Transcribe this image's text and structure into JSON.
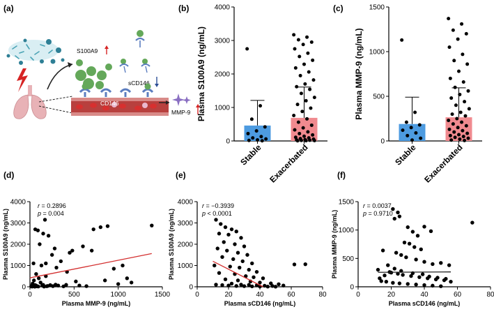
{
  "panels": [
    "(a)",
    "(b)",
    "(c)",
    "(d)",
    "(e)",
    "(f)"
  ],
  "diagram": {
    "labels": {
      "s100a9": "S100A9",
      "scd146": "sCD146",
      "cd146": "CD146",
      "mmp9": "MMP-9"
    },
    "colors": {
      "s100a9_circle": "#64a85a",
      "lung": "#e8b2b6",
      "vessel": "#b8403e",
      "receptor": "#5b7dbf",
      "mmp9_star": "#8a6fc2",
      "up_arrow": "#d62424",
      "down_arrow": "#2d4f96"
    }
  },
  "chart_data": [
    {
      "id": "b",
      "type": "bar",
      "categories": [
        "Stable",
        "Exacerbated"
      ],
      "values": [
        460,
        690
      ],
      "error_upper": [
        1210,
        1610
      ],
      "ylabel": "Plasma S100A9 (ng/mL)",
      "ylim": [
        0,
        4000
      ],
      "yticks": [
        "0",
        "1000",
        "2000",
        "3000",
        "4000"
      ],
      "colors": [
        "#4d9be0",
        "#f08a8f"
      ],
      "points": [
        {
          "group": 0,
          "values": [
            2750,
            1050,
            650,
            420,
            300,
            220,
            130,
            90,
            60,
            30,
            15,
            5
          ]
        },
        {
          "group": 1,
          "values": [
            3170,
            3100,
            3020,
            2950,
            2880,
            2750,
            2620,
            2520,
            2410,
            2290,
            2180,
            2060,
            1950,
            1820,
            1700,
            1620,
            1540,
            1420,
            1300,
            1200,
            1090,
            980,
            880,
            760,
            660,
            560,
            470,
            390,
            330,
            270,
            220,
            180,
            140,
            110,
            90,
            70,
            55,
            40,
            30,
            20,
            15,
            10,
            8,
            5
          ]
        }
      ]
    },
    {
      "id": "c",
      "type": "bar",
      "categories": [
        "Stable",
        "Exacerbated"
      ],
      "values": [
        190,
        265
      ],
      "error_upper": [
        490,
        595
      ],
      "ylabel": "Plasma MMP-9 (ng/mL)",
      "ylim": [
        0,
        1500
      ],
      "yticks": [
        "0",
        "500",
        "1000",
        "1500"
      ],
      "colors": [
        "#4d9be0",
        "#f08a8f"
      ],
      "points": [
        {
          "group": 0,
          "values": [
            1130,
            320,
            210,
            180,
            150,
            120,
            90,
            60,
            30,
            10
          ]
        },
        {
          "group": 1,
          "values": [
            1370,
            1310,
            1240,
            1200,
            1140,
            1050,
            970,
            900,
            860,
            780,
            700,
            660,
            600,
            560,
            520,
            480,
            440,
            400,
            360,
            320,
            300,
            280,
            250,
            230,
            210,
            190,
            170,
            150,
            130,
            115,
            100,
            85,
            70,
            60,
            50,
            40,
            30,
            20,
            10,
            5
          ]
        }
      ]
    },
    {
      "id": "d",
      "type": "scatter",
      "xlabel": "Plasma MMP-9 (ng/mL)",
      "ylabel": "Plasma S100A9 (ng/mL)",
      "xlim": [
        0,
        1500
      ],
      "ylim": [
        0,
        4000
      ],
      "xticks": [
        "0",
        "500",
        "1000",
        "1500"
      ],
      "yticks": [
        "0",
        "1000",
        "2000",
        "3000",
        "4000"
      ],
      "r_label": "r",
      "r_value": " = 0.2896",
      "p_label": "p",
      "p_value": " = 0.004",
      "fit": {
        "x": [
          0,
          1380
        ],
        "y": [
          420,
          1560
        ]
      },
      "fit_color": "#d32f2f",
      "points": [
        [
          20,
          50
        ],
        [
          30,
          150
        ],
        [
          45,
          300
        ],
        [
          60,
          80
        ],
        [
          80,
          20
        ],
        [
          100,
          400
        ],
        [
          120,
          200
        ],
        [
          150,
          90
        ],
        [
          180,
          500
        ],
        [
          200,
          40
        ],
        [
          60,
          2700
        ],
        [
          90,
          2650
        ],
        [
          150,
          2500
        ],
        [
          170,
          3150
        ],
        [
          210,
          2400
        ],
        [
          110,
          2000
        ],
        [
          180,
          1100
        ],
        [
          250,
          1500
        ],
        [
          280,
          1800
        ],
        [
          300,
          900
        ],
        [
          350,
          1200
        ],
        [
          420,
          700
        ],
        [
          450,
          1600
        ],
        [
          480,
          1700
        ],
        [
          520,
          250
        ],
        [
          600,
          1900
        ],
        [
          700,
          1700
        ],
        [
          720,
          2700
        ],
        [
          800,
          2800
        ],
        [
          880,
          2850
        ],
        [
          850,
          300
        ],
        [
          950,
          850
        ],
        [
          1000,
          130
        ],
        [
          1050,
          1000
        ],
        [
          1100,
          400
        ],
        [
          1150,
          200
        ],
        [
          1380,
          2880
        ],
        [
          40,
          1100
        ],
        [
          70,
          600
        ],
        [
          130,
          1000
        ],
        [
          15,
          20
        ],
        [
          25,
          10
        ],
        [
          35,
          30
        ],
        [
          55,
          5
        ],
        [
          75,
          45
        ],
        [
          95,
          15
        ],
        [
          140,
          60
        ],
        [
          160,
          10
        ],
        [
          190,
          25
        ],
        [
          230,
          80
        ],
        [
          260,
          30
        ],
        [
          290,
          100
        ],
        [
          320,
          60
        ],
        [
          380,
          20
        ],
        [
          410,
          90
        ],
        [
          560,
          60
        ],
        [
          640,
          30
        ]
      ]
    },
    {
      "id": "e",
      "type": "scatter",
      "xlabel": "Plasma sCD146 (ng/mL)",
      "ylabel": "Plasma S100A9 (ng/mL)",
      "xlim": [
        0,
        80
      ],
      "ylim": [
        0,
        4000
      ],
      "xticks": [
        "0",
        "20",
        "40",
        "60",
        "80"
      ],
      "yticks": [
        "0",
        "1000",
        "2000",
        "3000",
        "4000"
      ],
      "r_label": "r",
      "r_value": " = −0.3939",
      "p_label": "p",
      "p_value": " < 0.0001",
      "fit": {
        "x": [
          10,
          42
        ],
        "y": [
          1200,
          0
        ]
      },
      "fit_color": "#d32f2f",
      "points": [
        [
          12,
          3150
        ],
        [
          15,
          2950
        ],
        [
          18,
          2800
        ],
        [
          22,
          2700
        ],
        [
          25,
          2600
        ],
        [
          14,
          2500
        ],
        [
          20,
          2450
        ],
        [
          28,
          2300
        ],
        [
          17,
          2100
        ],
        [
          24,
          2000
        ],
        [
          30,
          1900
        ],
        [
          13,
          1800
        ],
        [
          19,
          1700
        ],
        [
          26,
          1600
        ],
        [
          32,
          1500
        ],
        [
          16,
          1400
        ],
        [
          23,
          1300
        ],
        [
          29,
          1200
        ],
        [
          35,
          1100
        ],
        [
          11,
          1000
        ],
        [
          21,
          950
        ],
        [
          27,
          900
        ],
        [
          33,
          800
        ],
        [
          38,
          700
        ],
        [
          14,
          650
        ],
        [
          24,
          600
        ],
        [
          31,
          500
        ],
        [
          36,
          450
        ],
        [
          42,
          400
        ],
        [
          18,
          350
        ],
        [
          26,
          300
        ],
        [
          34,
          250
        ],
        [
          40,
          200
        ],
        [
          47,
          160
        ],
        [
          52,
          120
        ],
        [
          12,
          100
        ],
        [
          16,
          80
        ],
        [
          20,
          60
        ],
        [
          25,
          40
        ],
        [
          30,
          30
        ],
        [
          35,
          20
        ],
        [
          40,
          15
        ],
        [
          45,
          10
        ],
        [
          50,
          5
        ],
        [
          55,
          60
        ],
        [
          69,
          1060
        ],
        [
          62,
          1050
        ],
        [
          22,
          150
        ],
        [
          28,
          100
        ],
        [
          33,
          90
        ],
        [
          38,
          70
        ],
        [
          43,
          50
        ],
        [
          48,
          40
        ]
      ]
    },
    {
      "id": "f",
      "type": "scatter",
      "xlabel": "Plasma sCD146 (ng/mL)",
      "ylabel": "Plasma MMP-9 (ng/mL)",
      "xlim": [
        0,
        80
      ],
      "ylim": [
        0,
        1500
      ],
      "xticks": [
        "0",
        "20",
        "40",
        "60",
        "80"
      ],
      "yticks": [
        "0",
        "500",
        "1000",
        "1500"
      ],
      "r_label": "r",
      "r_value": " = 0.0037",
      "p_label": "p",
      "p_value": " = 0.9710",
      "fit": {
        "x": [
          12,
          56
        ],
        "y": [
          255,
          262
        ]
      },
      "fit_color": "#222222",
      "points": [
        [
          21,
          1370
        ],
        [
          24,
          1310
        ],
        [
          25,
          1240
        ],
        [
          22,
          1200
        ],
        [
          69,
          1130
        ],
        [
          30,
          1050
        ],
        [
          33,
          970
        ],
        [
          36,
          900
        ],
        [
          40,
          1060
        ],
        [
          44,
          980
        ],
        [
          28,
          780
        ],
        [
          31,
          760
        ],
        [
          34,
          700
        ],
        [
          38,
          660
        ],
        [
          23,
          600
        ],
        [
          26,
          560
        ],
        [
          29,
          520
        ],
        [
          35,
          480
        ],
        [
          40,
          440
        ],
        [
          45,
          400
        ],
        [
          50,
          420
        ],
        [
          55,
          380
        ],
        [
          15,
          640
        ],
        [
          18,
          380
        ],
        [
          12,
          300
        ],
        [
          20,
          250
        ],
        [
          24,
          230
        ],
        [
          27,
          210
        ],
        [
          32,
          190
        ],
        [
          37,
          170
        ],
        [
          42,
          150
        ],
        [
          47,
          130
        ],
        [
          52,
          115
        ],
        [
          14,
          100
        ],
        [
          17,
          90
        ],
        [
          21,
          70
        ],
        [
          25,
          60
        ],
        [
          30,
          50
        ],
        [
          35,
          40
        ],
        [
          40,
          30
        ],
        [
          45,
          20
        ],
        [
          50,
          10
        ],
        [
          13,
          150
        ],
        [
          16,
          200
        ],
        [
          19,
          260
        ],
        [
          22,
          320
        ],
        [
          26,
          280
        ],
        [
          33,
          240
        ],
        [
          39,
          220
        ],
        [
          43,
          180
        ],
        [
          48,
          160
        ],
        [
          53,
          140
        ],
        [
          56,
          90
        ]
      ]
    }
  ]
}
